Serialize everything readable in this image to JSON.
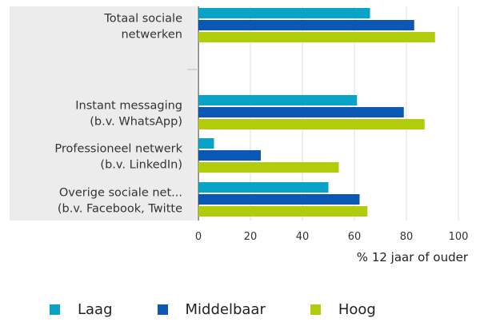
{
  "chart_data": {
    "type": "bar",
    "orientation": "horizontal",
    "categories": [
      [
        "Totaal sociale",
        "netwerken"
      ],
      [
        "",
        ""
      ],
      [
        "Instant messaging",
        "(b.v. WhatsApp)"
      ],
      [
        "Professioneel netwerk",
        "(b.v. LinkedIn)"
      ],
      [
        "Overige sociale net...",
        "(b.v. Facebook, Twitte"
      ]
    ],
    "series": [
      {
        "name": "Laag",
        "color": "#0aa3c8",
        "values": [
          66,
          null,
          61,
          6,
          50
        ]
      },
      {
        "name": "Middelbaar",
        "color": "#0a58b4",
        "values": [
          83,
          null,
          79,
          24,
          62
        ]
      },
      {
        "name": "Hoog",
        "color": "#b0cc0a",
        "values": [
          91,
          null,
          87,
          54,
          65
        ]
      }
    ],
    "xlim": [
      0,
      100
    ],
    "xticks": [
      "0",
      "20",
      "40",
      "60",
      "80",
      "100"
    ],
    "xlabel": "% 12 jaar of ouder",
    "grid": true,
    "legend_position": "bottom"
  },
  "legend": {
    "items": [
      {
        "label": "Laag",
        "color": "#0aa3c8"
      },
      {
        "label": "Middelbaar",
        "color": "#0a58b4"
      },
      {
        "label": "Hoog",
        "color": "#b0cc0a"
      }
    ]
  }
}
